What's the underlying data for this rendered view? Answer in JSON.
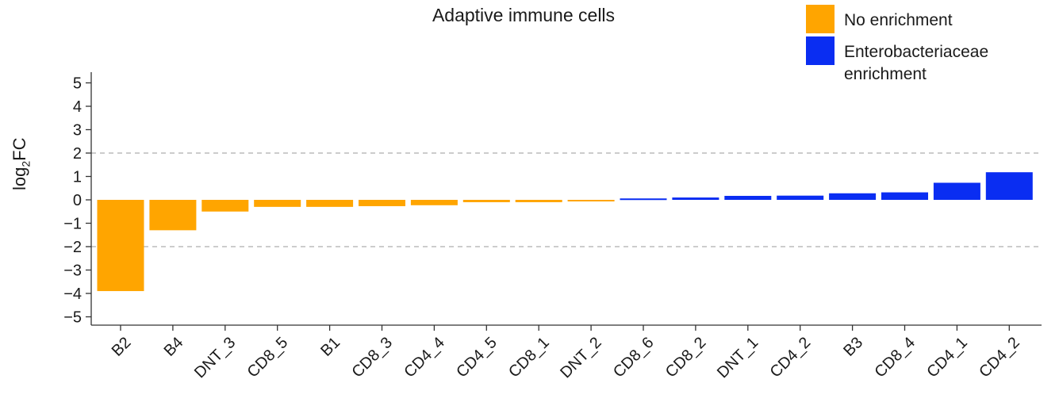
{
  "chart_data": {
    "type": "bar",
    "title": "Adaptive immune cells",
    "xlabel": "",
    "ylabel": "log2FC",
    "ylabel_base": "log",
    "ylabel_sub": "2",
    "ylabel_suffix": "FC",
    "ylim": [
      -5.5,
      5.5
    ],
    "yticks": [
      5,
      4,
      3,
      2,
      1,
      0,
      -1,
      -2,
      -3,
      -4,
      -5
    ],
    "ytick_labels": [
      "5",
      "4",
      "3",
      "2",
      "1",
      "0",
      "−1",
      "−2",
      "−3",
      "−4",
      "−5"
    ],
    "reference_lines": [
      2,
      -2
    ],
    "categories": [
      "B2",
      "B4",
      "DNT_3",
      "CD8_5",
      "B1",
      "CD8_3",
      "CD4_4",
      "CD4_5",
      "CD8_1",
      "DNT_2",
      "CD8_6",
      "CD8_2",
      "DNT_1",
      "CD4_2",
      "B3",
      "CD8_4",
      "CD4_1",
      "CD4_2"
    ],
    "values": [
      -3.9,
      -1.3,
      -0.5,
      -0.3,
      -0.3,
      -0.27,
      -0.23,
      -0.1,
      -0.1,
      -0.05,
      0.06,
      0.1,
      0.17,
      0.18,
      0.28,
      0.32,
      0.73,
      1.18
    ],
    "groups": [
      "No enrichment",
      "No enrichment",
      "No enrichment",
      "No enrichment",
      "No enrichment",
      "No enrichment",
      "No enrichment",
      "No enrichment",
      "No enrichment",
      "No enrichment",
      "Enterobacteriaceae enrichment",
      "Enterobacteriaceae enrichment",
      "Enterobacteriaceae enrichment",
      "Enterobacteriaceae enrichment",
      "Enterobacteriaceae enrichment",
      "Enterobacteriaceae enrichment",
      "Enterobacteriaceae enrichment",
      "Enterobacteriaceae enrichment"
    ],
    "legend": [
      {
        "label": "No enrichment",
        "color": "#FFA500"
      },
      {
        "label": "Enterobacteriaceae enrichment",
        "label_lines": [
          "Enterobacteriaceae",
          "enrichment"
        ],
        "color": "#0A2DF2"
      }
    ],
    "legend_position": "top-right",
    "grid": false
  }
}
